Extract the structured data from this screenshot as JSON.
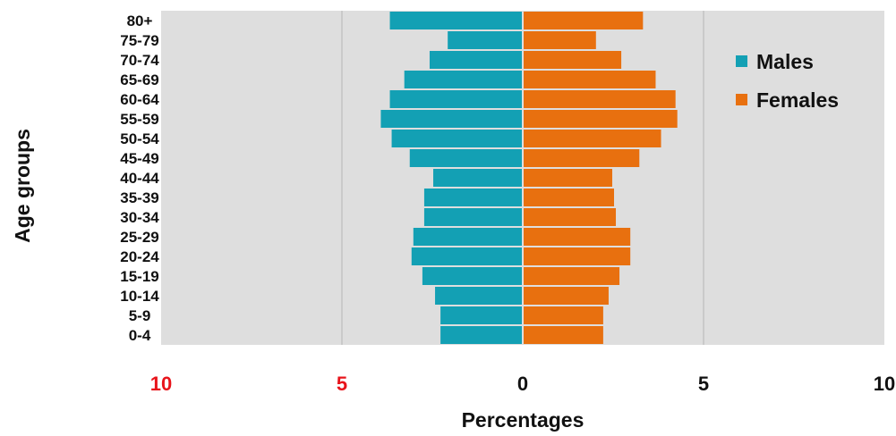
{
  "chart_data": {
    "type": "bar",
    "orientation": "horizontal",
    "layout": "population-pyramid",
    "title": "",
    "xlabel": "Percentages",
    "ylabel": "Age groups",
    "xlim": [
      -10,
      10
    ],
    "x_ticks": [
      {
        "value": -10,
        "label": "10",
        "color": "#e8141b"
      },
      {
        "value": -5,
        "label": "5",
        "color": "#e8141b"
      },
      {
        "value": 0,
        "label": "0",
        "color": "#111111"
      },
      {
        "value": 5,
        "label": "5",
        "color": "#111111"
      },
      {
        "value": 10,
        "label": "10",
        "color": "#111111"
      }
    ],
    "categories": [
      "80+",
      "75-79",
      "70-74",
      "65-69",
      "60-64",
      "55-59",
      "50-54",
      "45-49",
      "40-44",
      "35-39",
      "30-34",
      "25-29",
      "20-24",
      "15-19",
      "10-14",
      "5-9",
      "0-4"
    ],
    "series": [
      {
        "name": "Males",
        "color": "#13a0b4",
        "side": "left",
        "values": [
          3.65,
          2.05,
          2.55,
          3.25,
          3.65,
          3.9,
          3.6,
          3.1,
          2.45,
          2.7,
          2.7,
          3.0,
          3.05,
          2.75,
          2.4,
          2.25,
          2.25
        ]
      },
      {
        "name": "Females",
        "color": "#e8700f",
        "side": "right",
        "values": [
          3.3,
          2.0,
          2.7,
          3.65,
          4.2,
          4.25,
          3.8,
          3.2,
          2.45,
          2.5,
          2.55,
          2.95,
          2.95,
          2.65,
          2.35,
          2.2,
          2.2
        ]
      }
    ],
    "grid": true,
    "legend_position": "top-right",
    "plot_background": "#dedede"
  }
}
